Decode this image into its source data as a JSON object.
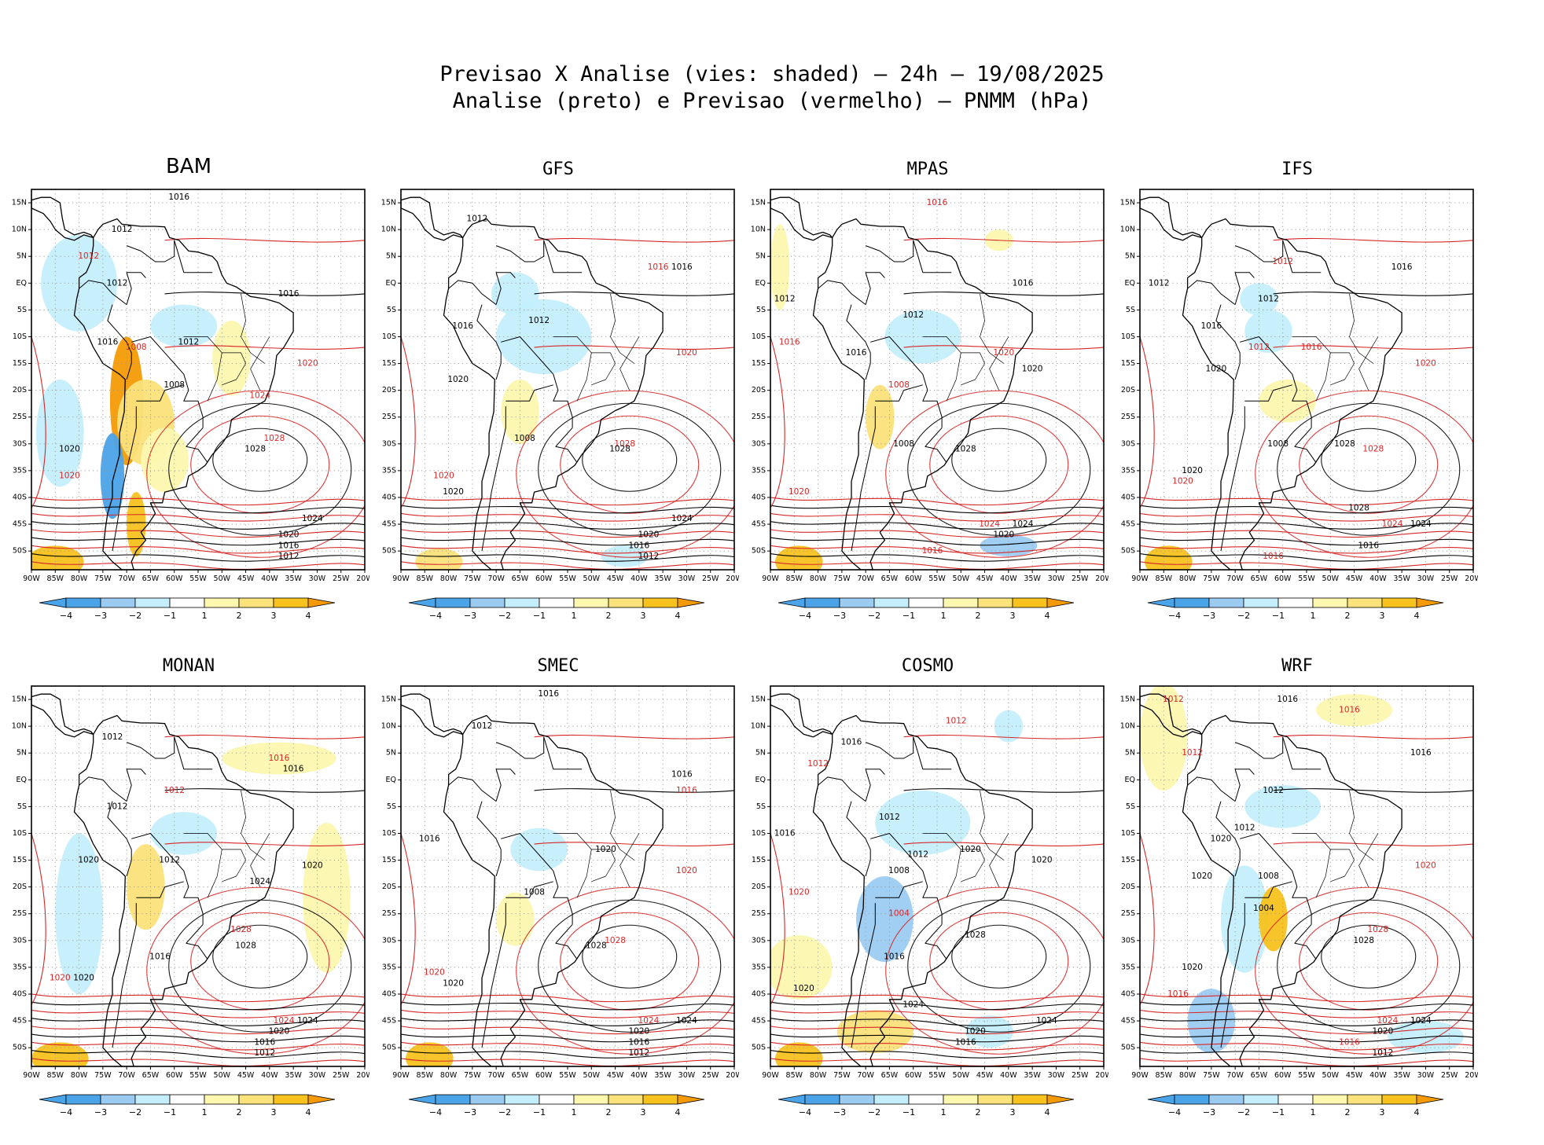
{
  "header": {
    "line1": "Previsao X Analise (vies: shaded) — 24h — 19/08/2025",
    "line2": "Analise (preto) e Previsao (vermelho) — PNMM (hPa)"
  },
  "colors": {
    "analysis": "#000000",
    "forecast": "#d62728",
    "neg4": "#4ba3e8",
    "neg3": "#9ccbf2",
    "neg2": "#c4eefc",
    "neg1": "#ffffff",
    "pos1": "#fdf7b0",
    "pos2": "#fbe27a",
    "pos3": "#f7c21e",
    "pos4": "#f49a06"
  },
  "axes": {
    "lat_labels": [
      "15N",
      "10N",
      "5N",
      "EQ",
      "5S",
      "10S",
      "15S",
      "20S",
      "25S",
      "30S",
      "35S",
      "40S",
      "45S",
      "50S"
    ],
    "lon_labels": [
      "90W",
      "85W",
      "80W",
      "75W",
      "70W",
      "65W",
      "60W",
      "55W",
      "50W",
      "45W",
      "40W",
      "35W",
      "30W",
      "25W",
      "20W"
    ]
  },
  "colorbar": {
    "labels": [
      "−4",
      "−3",
      "−2",
      "−1",
      "1",
      "2",
      "3",
      "4"
    ]
  },
  "models": [
    {
      "name": "BAM",
      "isobars": [
        {
          "value": "1016",
          "lat": 16,
          "lon": -59,
          "series": "analysis"
        },
        {
          "value": "1012",
          "lat": 10,
          "lon": -71,
          "series": "analysis"
        },
        {
          "value": "1012",
          "lat": 5,
          "lon": -78,
          "series": "forecast"
        },
        {
          "value": "1012",
          "lat": 0,
          "lon": -72,
          "series": "analysis"
        },
        {
          "value": "1016",
          "lat": -2,
          "lon": -36,
          "series": "analysis"
        },
        {
          "value": "1016",
          "lat": -11,
          "lon": -74,
          "series": "analysis"
        },
        {
          "value": "1008",
          "lat": -12,
          "lon": -68,
          "series": "forecast"
        },
        {
          "value": "1012",
          "lat": -11,
          "lon": -57,
          "series": "analysis"
        },
        {
          "value": "1020",
          "lat": -15,
          "lon": -32,
          "series": "forecast"
        },
        {
          "value": "1008",
          "lat": -19,
          "lon": -60,
          "series": "analysis"
        },
        {
          "value": "1024",
          "lat": -21,
          "lon": -42,
          "series": "forecast"
        },
        {
          "value": "1028",
          "lat": -29,
          "lon": -39,
          "series": "forecast"
        },
        {
          "value": "1028",
          "lat": -31,
          "lon": -43,
          "series": "analysis"
        },
        {
          "value": "1020",
          "lat": -31,
          "lon": -82,
          "series": "analysis"
        },
        {
          "value": "1020",
          "lat": -36,
          "lon": -82,
          "series": "forecast"
        },
        {
          "value": "1024",
          "lat": -44,
          "lon": -31,
          "series": "analysis"
        },
        {
          "value": "1020",
          "lat": -47,
          "lon": -36,
          "series": "analysis"
        },
        {
          "value": "1016",
          "lat": -49,
          "lon": -36,
          "series": "analysis"
        },
        {
          "value": "1012",
          "lat": -51,
          "lon": -36,
          "series": "analysis"
        }
      ]
    },
    {
      "name": "GFS",
      "isobars": [
        {
          "value": "1012",
          "lat": 12,
          "lon": -74,
          "series": "analysis"
        },
        {
          "value": "1016",
          "lat": 3,
          "lon": -36,
          "series": "forecast"
        },
        {
          "value": "1016",
          "lat": 3,
          "lon": -31,
          "series": "analysis"
        },
        {
          "value": "1016",
          "lat": -8,
          "lon": -77,
          "series": "analysis"
        },
        {
          "value": "1012",
          "lat": -7,
          "lon": -61,
          "series": "analysis"
        },
        {
          "value": "1020",
          "lat": -13,
          "lon": -30,
          "series": "forecast"
        },
        {
          "value": "1020",
          "lat": -18,
          "lon": -78,
          "series": "analysis"
        },
        {
          "value": "1008",
          "lat": -29,
          "lon": -64,
          "series": "analysis"
        },
        {
          "value": "1028",
          "lat": -30,
          "lon": -43,
          "series": "forecast"
        },
        {
          "value": "1028",
          "lat": -31,
          "lon": -44,
          "series": "analysis"
        },
        {
          "value": "1020",
          "lat": -36,
          "lon": -81,
          "series": "forecast"
        },
        {
          "value": "1020",
          "lat": -39,
          "lon": -79,
          "series": "analysis"
        },
        {
          "value": "1024",
          "lat": -44,
          "lon": -31,
          "series": "analysis"
        },
        {
          "value": "1020",
          "lat": -47,
          "lon": -38,
          "series": "analysis"
        },
        {
          "value": "1016",
          "lat": -49,
          "lon": -40,
          "series": "analysis"
        },
        {
          "value": "1012",
          "lat": -51,
          "lon": -38,
          "series": "analysis"
        }
      ]
    },
    {
      "name": "MPAS",
      "isobars": [
        {
          "value": "1016",
          "lat": 15,
          "lon": -55,
          "series": "forecast"
        },
        {
          "value": "1012",
          "lat": -3,
          "lon": -87,
          "series": "analysis"
        },
        {
          "value": "1016",
          "lat": 0,
          "lon": -37,
          "series": "analysis"
        },
        {
          "value": "1012",
          "lat": -6,
          "lon": -60,
          "series": "analysis"
        },
        {
          "value": "1016",
          "lat": -11,
          "lon": -86,
          "series": "forecast"
        },
        {
          "value": "1016",
          "lat": -13,
          "lon": -72,
          "series": "analysis"
        },
        {
          "value": "1020",
          "lat": -13,
          "lon": -41,
          "series": "forecast"
        },
        {
          "value": "1020",
          "lat": -16,
          "lon": -35,
          "series": "analysis"
        },
        {
          "value": "1008",
          "lat": -19,
          "lon": -63,
          "series": "forecast"
        },
        {
          "value": "1008",
          "lat": -30,
          "lon": -62,
          "series": "analysis"
        },
        {
          "value": "1028",
          "lat": -31,
          "lon": -49,
          "series": "analysis"
        },
        {
          "value": "1020",
          "lat": -39,
          "lon": -84,
          "series": "forecast"
        },
        {
          "value": "1024",
          "lat": -45,
          "lon": -44,
          "series": "forecast"
        },
        {
          "value": "1024",
          "lat": -45,
          "lon": -37,
          "series": "analysis"
        },
        {
          "value": "1020",
          "lat": -47,
          "lon": -41,
          "series": "analysis"
        },
        {
          "value": "1016",
          "lat": -50,
          "lon": -56,
          "series": "forecast"
        }
      ]
    },
    {
      "name": "IFS",
      "isobars": [
        {
          "value": "1016",
          "lat": 3,
          "lon": -35,
          "series": "analysis"
        },
        {
          "value": "1012",
          "lat": 4,
          "lon": -60,
          "series": "forecast"
        },
        {
          "value": "1012",
          "lat": 0,
          "lon": -86,
          "series": "analysis"
        },
        {
          "value": "1012",
          "lat": -3,
          "lon": -63,
          "series": "analysis"
        },
        {
          "value": "1016",
          "lat": -8,
          "lon": -75,
          "series": "analysis"
        },
        {
          "value": "1012",
          "lat": -12,
          "lon": -65,
          "series": "forecast"
        },
        {
          "value": "1016",
          "lat": -12,
          "lon": -54,
          "series": "forecast"
        },
        {
          "value": "1020",
          "lat": -15,
          "lon": -30,
          "series": "forecast"
        },
        {
          "value": "1020",
          "lat": -16,
          "lon": -74,
          "series": "analysis"
        },
        {
          "value": "1008",
          "lat": -30,
          "lon": -61,
          "series": "analysis"
        },
        {
          "value": "1028",
          "lat": -30,
          "lon": -47,
          "series": "analysis"
        },
        {
          "value": "1028",
          "lat": -31,
          "lon": -41,
          "series": "forecast"
        },
        {
          "value": "1020",
          "lat": -35,
          "lon": -79,
          "series": "analysis"
        },
        {
          "value": "1020",
          "lat": -37,
          "lon": -81,
          "series": "forecast"
        },
        {
          "value": "1028",
          "lat": -42,
          "lon": -44,
          "series": "analysis"
        },
        {
          "value": "1024",
          "lat": -45,
          "lon": -37,
          "series": "forecast"
        },
        {
          "value": "1024",
          "lat": -45,
          "lon": -31,
          "series": "analysis"
        },
        {
          "value": "1016",
          "lat": -49,
          "lon": -42,
          "series": "analysis"
        },
        {
          "value": "1016",
          "lat": -51,
          "lon": -62,
          "series": "forecast"
        }
      ]
    },
    {
      "name": "MONAN",
      "isobars": [
        {
          "value": "1012",
          "lat": 8,
          "lon": -73,
          "series": "analysis"
        },
        {
          "value": "1016",
          "lat": 4,
          "lon": -38,
          "series": "forecast"
        },
        {
          "value": "1016",
          "lat": 2,
          "lon": -35,
          "series": "analysis"
        },
        {
          "value": "1012",
          "lat": -2,
          "lon": -60,
          "series": "forecast"
        },
        {
          "value": "1012",
          "lat": -5,
          "lon": -72,
          "series": "analysis"
        },
        {
          "value": "1012",
          "lat": -15,
          "lon": -61,
          "series": "analysis"
        },
        {
          "value": "1020",
          "lat": -16,
          "lon": -31,
          "series": "analysis"
        },
        {
          "value": "1020",
          "lat": -15,
          "lon": -78,
          "series": "analysis"
        },
        {
          "value": "1024",
          "lat": -19,
          "lon": -42,
          "series": "analysis"
        },
        {
          "value": "1028",
          "lat": -28,
          "lon": -46,
          "series": "forecast"
        },
        {
          "value": "1028",
          "lat": -31,
          "lon": -45,
          "series": "analysis"
        },
        {
          "value": "1016",
          "lat": -33,
          "lon": -63,
          "series": "analysis"
        },
        {
          "value": "1020",
          "lat": -37,
          "lon": -84,
          "series": "forecast"
        },
        {
          "value": "1020",
          "lat": -37,
          "lon": -79,
          "series": "analysis"
        },
        {
          "value": "1024",
          "lat": -45,
          "lon": -37,
          "series": "forecast"
        },
        {
          "value": "1024",
          "lat": -45,
          "lon": -32,
          "series": "analysis"
        },
        {
          "value": "1020",
          "lat": -47,
          "lon": -38,
          "series": "analysis"
        },
        {
          "value": "1016",
          "lat": -49,
          "lon": -41,
          "series": "analysis"
        },
        {
          "value": "1012",
          "lat": -51,
          "lon": -41,
          "series": "analysis"
        }
      ]
    },
    {
      "name": "SMEC",
      "isobars": [
        {
          "value": "1016",
          "lat": 16,
          "lon": -59,
          "series": "analysis"
        },
        {
          "value": "1012",
          "lat": 10,
          "lon": -73,
          "series": "analysis"
        },
        {
          "value": "1016",
          "lat": 1,
          "lon": -31,
          "series": "analysis"
        },
        {
          "value": "1016",
          "lat": -2,
          "lon": -30,
          "series": "forecast"
        },
        {
          "value": "1016",
          "lat": -11,
          "lon": -84,
          "series": "analysis"
        },
        {
          "value": "1020",
          "lat": -13,
          "lon": -47,
          "series": "analysis"
        },
        {
          "value": "1020",
          "lat": -17,
          "lon": -30,
          "series": "forecast"
        },
        {
          "value": "1008",
          "lat": -21,
          "lon": -62,
          "series": "analysis"
        },
        {
          "value": "1028",
          "lat": -30,
          "lon": -45,
          "series": "forecast"
        },
        {
          "value": "1028",
          "lat": -31,
          "lon": -49,
          "series": "analysis"
        },
        {
          "value": "1020",
          "lat": -36,
          "lon": -83,
          "series": "forecast"
        },
        {
          "value": "1020",
          "lat": -38,
          "lon": -79,
          "series": "analysis"
        },
        {
          "value": "1024",
          "lat": -45,
          "lon": -38,
          "series": "forecast"
        },
        {
          "value": "1024",
          "lat": -45,
          "lon": -30,
          "series": "analysis"
        },
        {
          "value": "1020",
          "lat": -47,
          "lon": -40,
          "series": "analysis"
        },
        {
          "value": "1016",
          "lat": -49,
          "lon": -40,
          "series": "analysis"
        },
        {
          "value": "1012",
          "lat": -51,
          "lon": -40,
          "series": "analysis"
        }
      ]
    },
    {
      "name": "COSMO",
      "isobars": [
        {
          "value": "1012",
          "lat": 11,
          "lon": -51,
          "series": "forecast"
        },
        {
          "value": "1016",
          "lat": 7,
          "lon": -73,
          "series": "analysis"
        },
        {
          "value": "1012",
          "lat": 3,
          "lon": -80,
          "series": "forecast"
        },
        {
          "value": "1016",
          "lat": -10,
          "lon": -87,
          "series": "analysis"
        },
        {
          "value": "1012",
          "lat": -7,
          "lon": -65,
          "series": "analysis"
        },
        {
          "value": "1012",
          "lat": -14,
          "lon": -59,
          "series": "analysis"
        },
        {
          "value": "1020",
          "lat": -13,
          "lon": -48,
          "series": "analysis"
        },
        {
          "value": "1020",
          "lat": -15,
          "lon": -33,
          "series": "analysis"
        },
        {
          "value": "1008",
          "lat": -17,
          "lon": -63,
          "series": "analysis"
        },
        {
          "value": "1020",
          "lat": -21,
          "lon": -84,
          "series": "forecast"
        },
        {
          "value": "1004",
          "lat": -25,
          "lon": -63,
          "series": "forecast"
        },
        {
          "value": "1028",
          "lat": -29,
          "lon": -47,
          "series": "analysis"
        },
        {
          "value": "1016",
          "lat": -33,
          "lon": -64,
          "series": "analysis"
        },
        {
          "value": "1020",
          "lat": -39,
          "lon": -83,
          "series": "analysis"
        },
        {
          "value": "1024",
          "lat": -42,
          "lon": -60,
          "series": "analysis"
        },
        {
          "value": "1024",
          "lat": -45,
          "lon": -32,
          "series": "analysis"
        },
        {
          "value": "1020",
          "lat": -47,
          "lon": -47,
          "series": "analysis"
        },
        {
          "value": "1016",
          "lat": -49,
          "lon": -49,
          "series": "analysis"
        }
      ]
    },
    {
      "name": "WRF",
      "isobars": [
        {
          "value": "1012",
          "lat": 15,
          "lon": -83,
          "series": "forecast"
        },
        {
          "value": "1016",
          "lat": 15,
          "lon": -59,
          "series": "analysis"
        },
        {
          "value": "1016",
          "lat": 13,
          "lon": -46,
          "series": "forecast"
        },
        {
          "value": "1012",
          "lat": 5,
          "lon": -79,
          "series": "forecast"
        },
        {
          "value": "1016",
          "lat": 5,
          "lon": -31,
          "series": "analysis"
        },
        {
          "value": "1012",
          "lat": -2,
          "lon": -62,
          "series": "analysis"
        },
        {
          "value": "1012",
          "lat": -9,
          "lon": -68,
          "series": "analysis"
        },
        {
          "value": "1020",
          "lat": -11,
          "lon": -73,
          "series": "analysis"
        },
        {
          "value": "1020",
          "lat": -16,
          "lon": -30,
          "series": "forecast"
        },
        {
          "value": "1020",
          "lat": -18,
          "lon": -77,
          "series": "analysis"
        },
        {
          "value": "1008",
          "lat": -18,
          "lon": -63,
          "series": "analysis"
        },
        {
          "value": "1004",
          "lat": -24,
          "lon": -64,
          "series": "analysis"
        },
        {
          "value": "1028",
          "lat": -28,
          "lon": -40,
          "series": "forecast"
        },
        {
          "value": "1028",
          "lat": -30,
          "lon": -43,
          "series": "analysis"
        },
        {
          "value": "1020",
          "lat": -35,
          "lon": -79,
          "series": "analysis"
        },
        {
          "value": "1016",
          "lat": -40,
          "lon": -82,
          "series": "forecast"
        },
        {
          "value": "1024",
          "lat": -45,
          "lon": -38,
          "series": "forecast"
        },
        {
          "value": "1024",
          "lat": -45,
          "lon": -31,
          "series": "analysis"
        },
        {
          "value": "1020",
          "lat": -47,
          "lon": -39,
          "series": "analysis"
        },
        {
          "value": "1016",
          "lat": -49,
          "lon": -46,
          "series": "forecast"
        },
        {
          "value": "1012",
          "lat": -51,
          "lon": -39,
          "series": "analysis"
        }
      ]
    }
  ]
}
